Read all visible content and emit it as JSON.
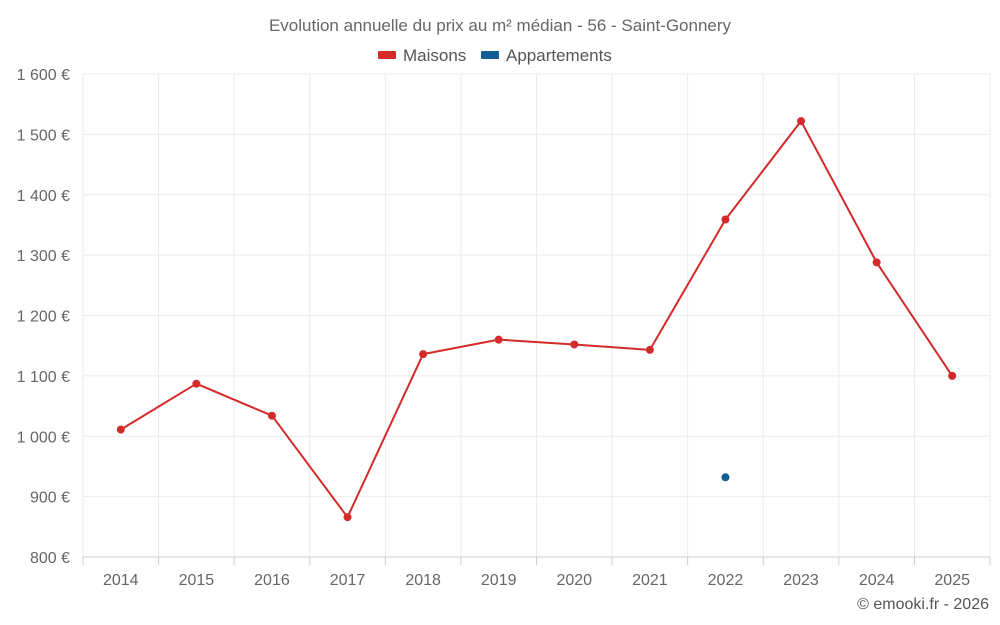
{
  "chart_data": {
    "type": "line",
    "title": "Evolution annuelle du prix au m² médian - 56 - Saint-Gonnery",
    "categories": [
      "2014",
      "2015",
      "2016",
      "2017",
      "2018",
      "2019",
      "2020",
      "2021",
      "2022",
      "2023",
      "2024",
      "2025"
    ],
    "series": [
      {
        "name": "Maisons",
        "color": "#d42a2a",
        "values": [
          1011,
          1087,
          1034,
          866,
          1136,
          1160,
          1152,
          1143,
          1359,
          1522,
          1288,
          1100
        ]
      },
      {
        "name": "Appartements",
        "color": "#0f5e96",
        "values": [
          null,
          null,
          null,
          null,
          null,
          null,
          null,
          null,
          932,
          null,
          null,
          null
        ]
      }
    ],
    "ylim": [
      800,
      1600
    ],
    "yticks": [
      800,
      900,
      1000,
      1100,
      1200,
      1300,
      1400,
      1500,
      1600
    ],
    "ytick_labels": [
      "800 €",
      "900 €",
      "1 000 €",
      "1 100 €",
      "1 200 €",
      "1 300 €",
      "1 400 €",
      "1 500 €",
      "1 600 €"
    ],
    "xlabel": "",
    "ylabel": "",
    "grid": true,
    "legend": "top-center"
  },
  "credit": "© emooki.fr - 2026"
}
